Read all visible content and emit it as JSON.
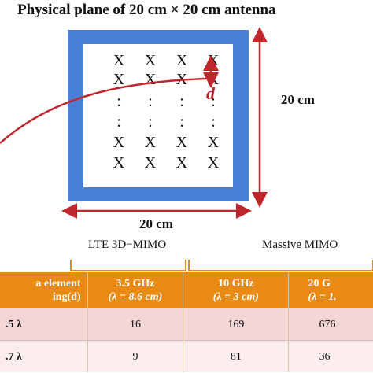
{
  "title": "Physical plane of 20 cm × 20 cm antenna",
  "antenna": {
    "rows": [
      [
        "X",
        "X",
        "X",
        "X"
      ],
      [
        "X",
        "X",
        "X",
        "X"
      ],
      [
        ":",
        ":",
        ":",
        ":"
      ],
      [
        ":",
        ":",
        ":",
        ":"
      ],
      [
        "X",
        "X",
        "X",
        "X"
      ],
      [
        "X",
        "X",
        "X",
        "X"
      ]
    ],
    "side_label": "20 cm",
    "bottom_label": "20 cm",
    "spacing_label": "d",
    "colors": {
      "frame": "#4a7fd6",
      "accent": "#c0272d"
    }
  },
  "groups": {
    "lte": "LTE 3D−MIMO",
    "massive": "Massive MIMO",
    "bracket_color": "#e98a15"
  },
  "table": {
    "header": {
      "col0_line1": "a element",
      "col0_line2": "ing(d)",
      "col1_line1": "3.5 GHz",
      "col1_line2": "(λ = 8.6 cm)",
      "col2_line1": "10 GHz",
      "col2_line2": "(λ = 3 cm)",
      "col3_line1": "20 G",
      "col3_line2": "(λ = 1."
    },
    "rows": [
      {
        "spacing": ".5 λ",
        "v1": "16",
        "v2": "169",
        "v3": "676"
      },
      {
        "spacing": ".7 λ",
        "v1": "9",
        "v2": "81",
        "v3": "36"
      }
    ]
  }
}
